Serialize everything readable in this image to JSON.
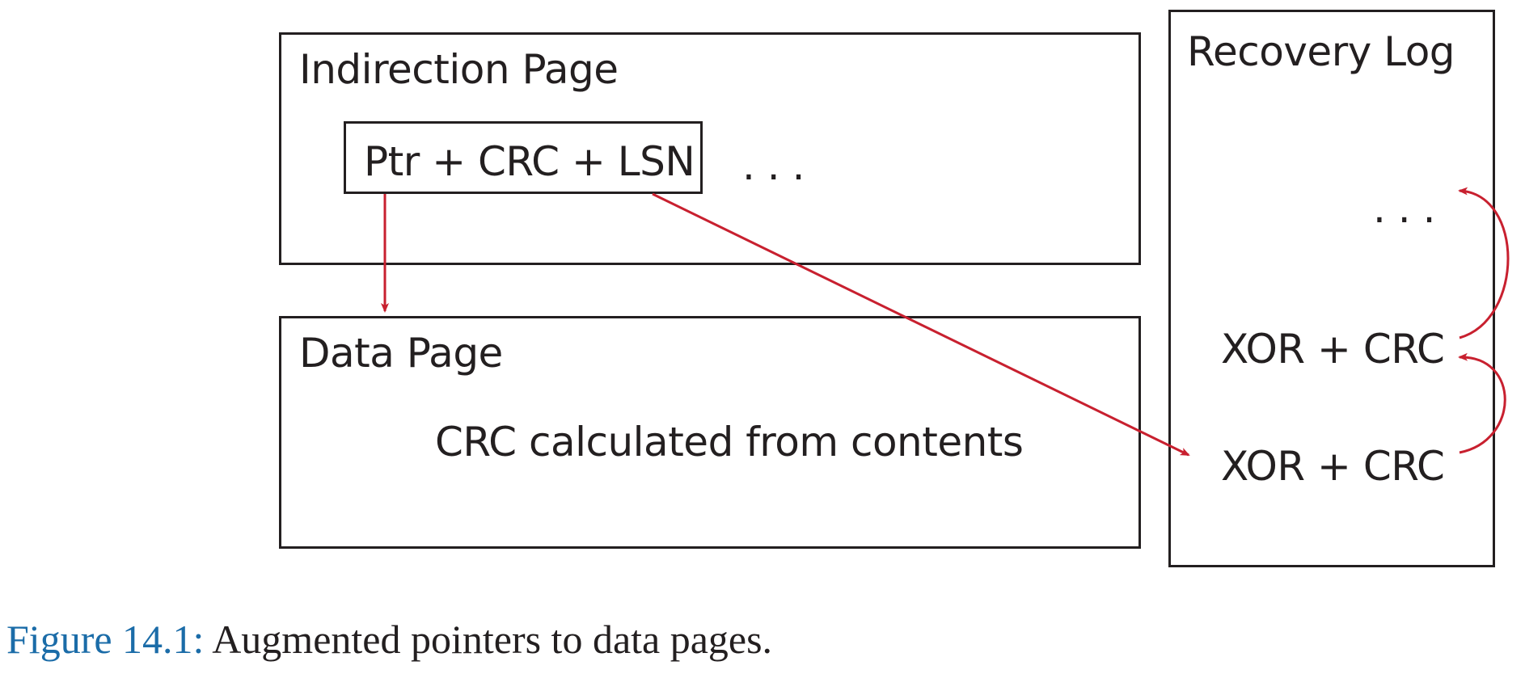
{
  "boxes": {
    "indirection_page": "Indirection Page",
    "data_page": "Data Page",
    "recovery_log": "Recovery Log"
  },
  "pointer_entry": "Ptr + CRC + LSN",
  "indirection_ellipsis": ". . .",
  "data_page_note": "CRC calculated from contents",
  "log": {
    "ellipsis": ". . .",
    "records": [
      "XOR + CRC",
      "XOR + CRC"
    ]
  },
  "caption": {
    "number": "Figure 14.1:",
    "text": "Augmented pointers to data pages."
  },
  "colors": {
    "outline": "#231f20",
    "arrow": "#c8202f",
    "caption_number": "#1b6ca8"
  }
}
